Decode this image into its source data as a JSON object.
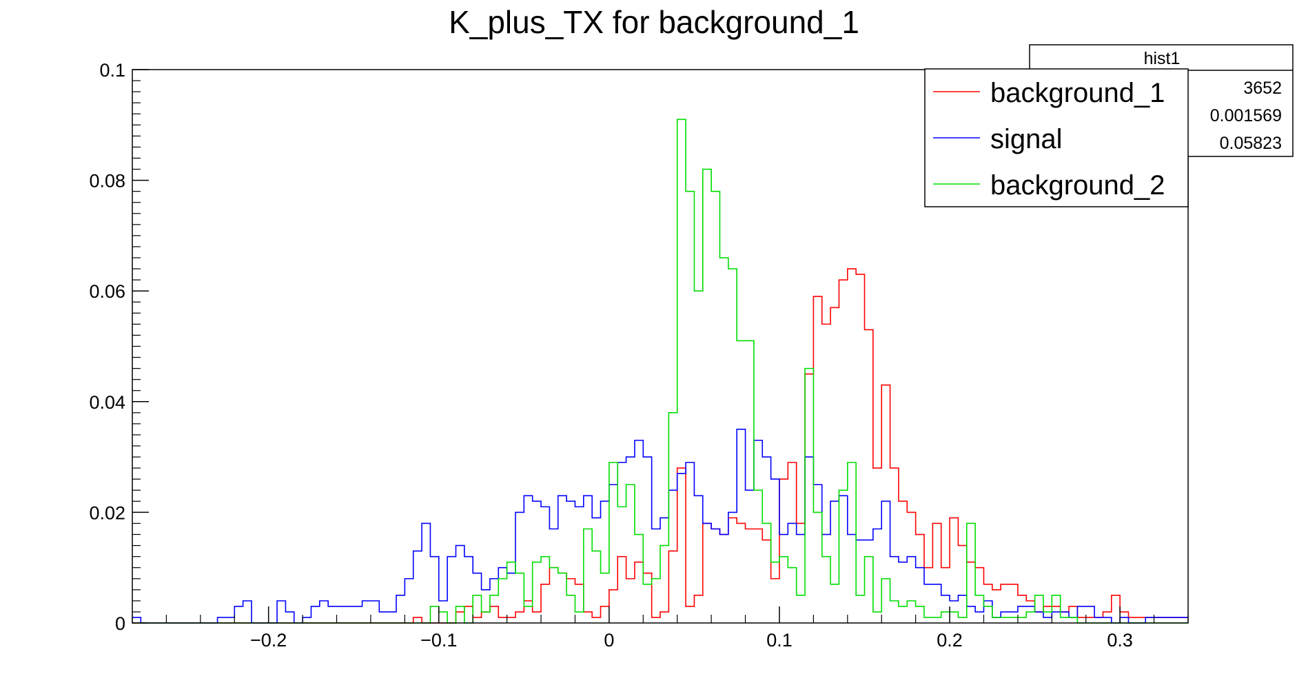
{
  "chart_data": {
    "type": "histogram",
    "title": "K_plus_TX for background_1",
    "xlabel": "",
    "ylabel": "",
    "xlim": [
      -0.28,
      0.34
    ],
    "ylim": [
      0,
      0.1
    ],
    "x_ticks": [
      -0.2,
      -0.1,
      0,
      0.1,
      0.2,
      0.3
    ],
    "x_tick_labels": [
      "−0.2",
      "−0.1",
      "0",
      "0.1",
      "0.2",
      "0.3"
    ],
    "y_ticks": [
      0,
      0.02,
      0.04,
      0.06,
      0.08,
      0.1
    ],
    "y_tick_labels": [
      "0",
      "0.02",
      "0.04",
      "0.06",
      "0.08",
      "0.1"
    ],
    "legend_position": "top-right",
    "grid": false,
    "bins": {
      "start": -0.28,
      "width": 0.005,
      "count": 124
    },
    "series": [
      {
        "name": "background_1",
        "color": "#ff0000",
        "values": [
          0,
          0,
          0,
          0,
          0,
          0,
          0,
          0,
          0,
          0,
          0,
          0,
          0,
          0,
          0,
          0,
          0,
          0,
          0,
          0,
          0,
          0,
          0,
          0,
          0,
          0,
          0,
          0,
          0,
          0,
          0,
          0,
          0,
          0.001,
          0,
          0,
          0,
          0,
          0.002,
          0.003,
          0.001,
          0.002,
          0.003,
          0.001,
          0.001,
          0.002,
          0.004,
          0.002,
          0.007,
          0.01,
          0.009,
          0.008,
          0.007,
          0.002,
          0.001,
          0.003,
          0.006,
          0.012,
          0.008,
          0.011,
          0.009,
          0.001,
          0.002,
          0.013,
          0.028,
          0.003,
          0.005,
          0.018,
          0.017,
          0.016,
          0.019,
          0.018,
          0.017,
          0.017,
          0.015,
          0.008,
          0.026,
          0.029,
          0.018,
          0.045,
          0.059,
          0.054,
          0.057,
          0.062,
          0.064,
          0.063,
          0.053,
          0.028,
          0.043,
          0.028,
          0.022,
          0.02,
          0.016,
          0.01,
          0.018,
          0.01,
          0.019,
          0.014,
          0.011,
          0.01,
          0.007,
          0.006,
          0.007,
          0.007,
          0.005,
          0.004,
          0.002,
          0.003,
          0.003,
          0.002,
          0.003,
          0.001,
          0.001,
          0.001,
          0.002,
          0.005,
          0.002,
          0.001,
          0.001,
          0.001,
          0.001,
          0.001,
          0.001,
          0.001
        ]
      },
      {
        "name": "signal",
        "color": "#0000ff",
        "values": [
          0.001,
          0,
          0,
          0,
          0,
          0,
          0,
          0,
          0,
          0,
          0.001,
          0.001,
          0.003,
          0.004,
          0,
          0,
          0,
          0.004,
          0.002,
          0,
          0.001,
          0.003,
          0.004,
          0.003,
          0.003,
          0.003,
          0.003,
          0.004,
          0.004,
          0.002,
          0.002,
          0.005,
          0.008,
          0.013,
          0.018,
          0.012,
          0.004,
          0.012,
          0.014,
          0.012,
          0.009,
          0.006,
          0.008,
          0.01,
          0.009,
          0.02,
          0.023,
          0.022,
          0.021,
          0.017,
          0.023,
          0.022,
          0.021,
          0.023,
          0.019,
          0.022,
          0.025,
          0.029,
          0.03,
          0.033,
          0.03,
          0.017,
          0.019,
          0.024,
          0.027,
          0.029,
          0.023,
          0.018,
          0.017,
          0.016,
          0.02,
          0.035,
          0.024,
          0.033,
          0.03,
          0.026,
          0.016,
          0.018,
          0.016,
          0.03,
          0.025,
          0.016,
          0.022,
          0.023,
          0.016,
          0.015,
          0.015,
          0.017,
          0.022,
          0.012,
          0.011,
          0.012,
          0.01,
          0.007,
          0.007,
          0.005,
          0.004,
          0.005,
          0.003,
          0.002,
          0.004,
          0.001,
          0.002,
          0.002,
          0.003,
          0.003,
          0.002,
          0.001,
          0.002,
          0.002,
          0.001,
          0.003,
          0.003,
          0.001,
          0.001,
          0,
          0.001,
          0,
          0,
          0.001,
          0.001,
          0.001,
          0.001,
          0.001
        ]
      },
      {
        "name": "background_2",
        "color": "#00dd00",
        "values": [
          0,
          0,
          0,
          0,
          0,
          0,
          0,
          0,
          0,
          0,
          0,
          0,
          0,
          0,
          0,
          0,
          0,
          0,
          0,
          0,
          0,
          0,
          0,
          0,
          0,
          0,
          0,
          0,
          0,
          0,
          0,
          0,
          0,
          0,
          0,
          0.003,
          0.002,
          0,
          0.003,
          0,
          0.005,
          0.002,
          0.005,
          0.008,
          0.011,
          0.009,
          0.003,
          0.011,
          0.012,
          0.01,
          0.009,
          0.005,
          0.002,
          0.017,
          0.013,
          0.009,
          0.029,
          0.021,
          0.025,
          0.016,
          0.007,
          0.008,
          0.014,
          0.038,
          0.091,
          0.078,
          0.06,
          0.082,
          0.078,
          0.066,
          0.064,
          0.051,
          0.051,
          0.024,
          0.018,
          0.011,
          0.012,
          0.01,
          0.005,
          0.046,
          0.02,
          0.012,
          0.007,
          0.024,
          0.029,
          0.005,
          0.012,
          0.002,
          0.008,
          0.004,
          0.003,
          0.004,
          0.003,
          0.001,
          0.001,
          0.002,
          0.002,
          0.001,
          0.018,
          0.005,
          0.003,
          0.001,
          0.001,
          0.001,
          0.001,
          0.002,
          0.005,
          0.002,
          0.005,
          0.001,
          0.001,
          0,
          0,
          0,
          0,
          0,
          0,
          0,
          0,
          0,
          0,
          0,
          0,
          0
        ]
      }
    ]
  },
  "legend": {
    "items": [
      {
        "label": "background_1",
        "color": "#ff0000"
      },
      {
        "label": "signal",
        "color": "#0000ff"
      },
      {
        "label": "background_2",
        "color": "#00dd00"
      }
    ]
  },
  "stats_box": {
    "title": "hist1",
    "values": [
      "3652",
      "0.001569",
      "0.05823"
    ]
  }
}
